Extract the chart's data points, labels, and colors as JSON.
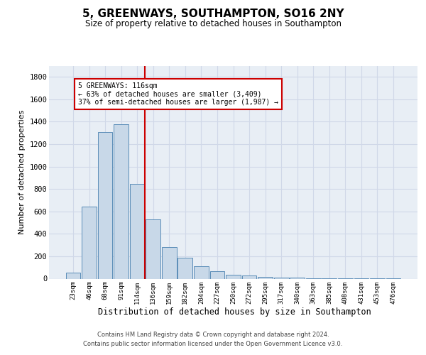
{
  "title1": "5, GREENWAYS, SOUTHAMPTON, SO16 2NY",
  "title2": "Size of property relative to detached houses in Southampton",
  "xlabel": "Distribution of detached houses by size in Southampton",
  "ylabel": "Number of detached properties",
  "categories": [
    "23sqm",
    "46sqm",
    "68sqm",
    "91sqm",
    "114sqm",
    "136sqm",
    "159sqm",
    "182sqm",
    "204sqm",
    "227sqm",
    "250sqm",
    "272sqm",
    "295sqm",
    "317sqm",
    "340sqm",
    "363sqm",
    "385sqm",
    "408sqm",
    "431sqm",
    "453sqm",
    "476sqm"
  ],
  "bar_heights": [
    55,
    640,
    1305,
    1375,
    845,
    530,
    285,
    185,
    110,
    65,
    38,
    28,
    18,
    10,
    10,
    5,
    5,
    5,
    5,
    5,
    5
  ],
  "annotation_line1": "5 GREENWAYS: 116sqm",
  "annotation_line2": "← 63% of detached houses are smaller (3,409)",
  "annotation_line3": "37% of semi-detached houses are larger (1,987) →",
  "bar_color": "#c8d8e8",
  "bar_edge_color": "#5b8db8",
  "vline_color": "#cc0000",
  "annotation_box_edge_color": "#cc0000",
  "plot_bg_color": "#e8eef5",
  "background_color": "#ffffff",
  "grid_color": "#d0d8e8",
  "ylim": [
    0,
    1900
  ],
  "yticks": [
    0,
    200,
    400,
    600,
    800,
    1000,
    1200,
    1400,
    1600,
    1800
  ],
  "vline_x": 4.5,
  "footer1": "Contains HM Land Registry data © Crown copyright and database right 2024.",
  "footer2": "Contains public sector information licensed under the Open Government Licence v3.0."
}
